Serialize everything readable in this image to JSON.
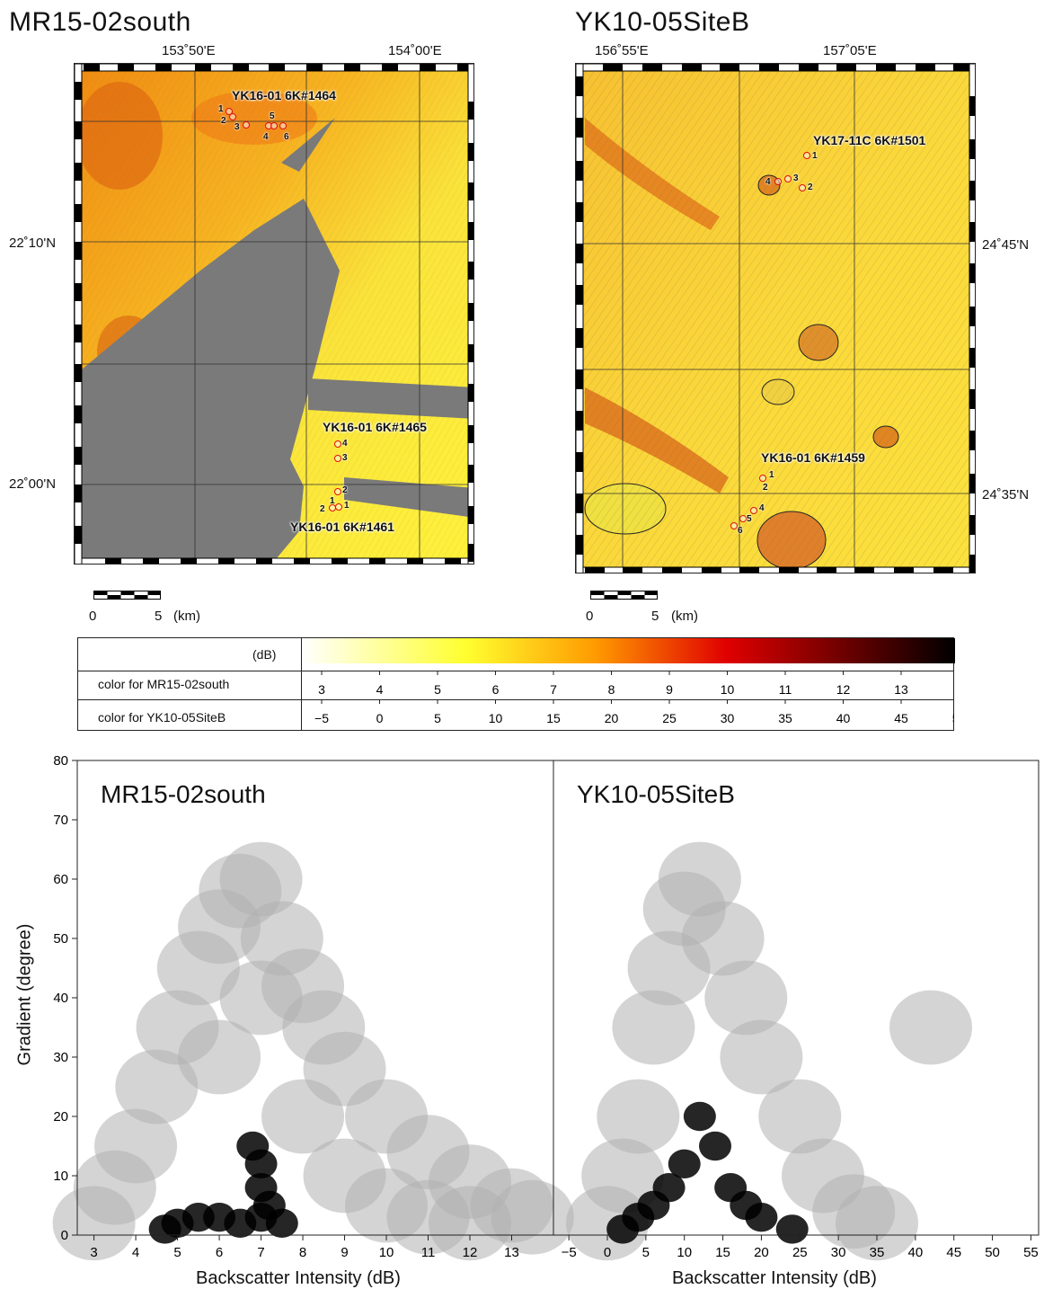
{
  "maps": [
    {
      "title": "MR15-02south",
      "lon_labels": [
        "153˚50'E",
        "154˚00'E"
      ],
      "lat_labels": [
        "22˚10'N",
        "22˚00'N"
      ],
      "sites": [
        {
          "label": "YK16-01 6K#1464",
          "stations": [
            "1",
            "2",
            "3",
            "4",
            "5",
            "6"
          ]
        },
        {
          "label": "YK16-01 6K#1465",
          "stations": [
            "4",
            "3"
          ]
        },
        {
          "label": "YK16-01 6K#1461",
          "stations": [
            "2",
            "1",
            "2",
            "1"
          ]
        }
      ],
      "scale": {
        "zero": "0",
        "five": "5",
        "unit": "(km)"
      }
    },
    {
      "title": "YK10-05SiteB",
      "lon_labels": [
        "156˚55'E",
        "157˚05'E"
      ],
      "lat_labels": [
        "24˚45'N",
        "24˚35'N"
      ],
      "sites": [
        {
          "label": "YK17-11C 6K#1501",
          "stations": [
            "1",
            "4",
            "3",
            "2"
          ]
        },
        {
          "label": "YK16-01 6K#1459",
          "stations": [
            "1",
            "2",
            "4",
            "5",
            "6"
          ]
        }
      ],
      "scale": {
        "zero": "0",
        "five": "5",
        "unit": "(km)"
      }
    }
  ],
  "colorbar": {
    "unit": "(dB)",
    "rows": [
      {
        "label": "color for MR15-02south",
        "ticks": [
          "3",
          "4",
          "5",
          "6",
          "7",
          "8",
          "9",
          "10",
          "11",
          "12",
          "13"
        ]
      },
      {
        "label": "color for YK10-05SiteB",
        "ticks": [
          "−5",
          "0",
          "5",
          "10",
          "15",
          "20",
          "25",
          "30",
          "35",
          "40",
          "45",
          "50"
        ]
      }
    ],
    "colors": [
      "#ffffff",
      "#ffff00",
      "#ff8c00",
      "#e00000",
      "#000000"
    ]
  },
  "chart_data": [
    {
      "type": "scatter",
      "title": "MR15-02south",
      "xlabel": "Backscatter Intensity (dB)",
      "ylabel": "Gradient (degree)",
      "xlim": [
        2.6,
        14.0
      ],
      "ylim": [
        0,
        80
      ],
      "xticks": [
        3,
        4,
        5,
        6,
        7,
        8,
        9,
        10,
        11,
        12,
        13
      ],
      "yticks": [
        0,
        10,
        20,
        30,
        40,
        50,
        60,
        70,
        80
      ],
      "series": [
        {
          "color": "#b0b0b0",
          "points": [
            [
              3,
              2
            ],
            [
              3.5,
              8
            ],
            [
              4,
              15
            ],
            [
              4.5,
              25
            ],
            [
              5,
              35
            ],
            [
              5.5,
              45
            ],
            [
              6,
              52
            ],
            [
              6.5,
              58
            ],
            [
              7,
              60
            ],
            [
              7.5,
              50
            ],
            [
              8,
              42
            ],
            [
              8.5,
              35
            ],
            [
              9,
              28
            ],
            [
              10,
              20
            ],
            [
              11,
              14
            ],
            [
              12,
              9
            ],
            [
              13,
              5
            ],
            [
              13.5,
              3
            ],
            [
              6,
              30
            ],
            [
              7,
              40
            ],
            [
              8,
              20
            ],
            [
              9,
              10
            ],
            [
              10,
              5
            ],
            [
              11,
              3
            ],
            [
              12,
              2
            ]
          ]
        },
        {
          "color": "#000000",
          "points": [
            [
              4.7,
              1
            ],
            [
              5,
              2
            ],
            [
              5.5,
              3
            ],
            [
              6,
              3
            ],
            [
              6.5,
              2
            ],
            [
              7,
              3
            ],
            [
              7,
              8
            ],
            [
              7,
              12
            ],
            [
              7.2,
              5
            ],
            [
              7.5,
              2
            ],
            [
              6.8,
              15
            ]
          ]
        }
      ]
    },
    {
      "type": "scatter",
      "title": "YK10-05SiteB",
      "xlabel": "Backscatter Intensity (dB)",
      "ylabel": "",
      "xlim": [
        -7,
        56
      ],
      "ylim": [
        0,
        80
      ],
      "xticks": [
        -5,
        0,
        5,
        10,
        15,
        20,
        25,
        30,
        35,
        40,
        45,
        50,
        55
      ],
      "yticks": [
        0,
        10,
        20,
        30,
        40,
        50,
        60,
        70,
        80
      ],
      "series": [
        {
          "color": "#b0b0b0",
          "points": [
            [
              0,
              2
            ],
            [
              2,
              10
            ],
            [
              4,
              20
            ],
            [
              6,
              35
            ],
            [
              8,
              45
            ],
            [
              10,
              55
            ],
            [
              12,
              60
            ],
            [
              15,
              50
            ],
            [
              18,
              40
            ],
            [
              20,
              30
            ],
            [
              25,
              20
            ],
            [
              28,
              10
            ],
            [
              32,
              4
            ],
            [
              35,
              2
            ],
            [
              42,
              35
            ]
          ]
        },
        {
          "color": "#000000",
          "points": [
            [
              2,
              1
            ],
            [
              4,
              3
            ],
            [
              6,
              5
            ],
            [
              8,
              8
            ],
            [
              10,
              12
            ],
            [
              12,
              20
            ],
            [
              14,
              15
            ],
            [
              16,
              8
            ],
            [
              18,
              5
            ],
            [
              20,
              3
            ],
            [
              24,
              1
            ]
          ]
        }
      ]
    }
  ]
}
